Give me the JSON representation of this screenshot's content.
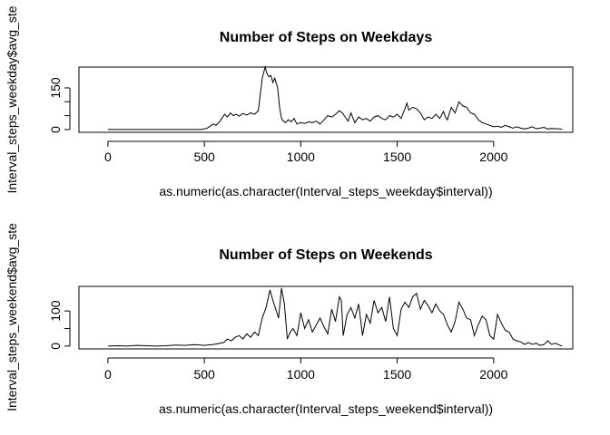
{
  "chart_data": [
    {
      "type": "line",
      "title": "Number of Steps on Weekdays",
      "xlabel": "as.numeric(as.character(Interval_steps_weekday$interval))",
      "ylabel": "Interval_steps_weekday$avg_ste",
      "xlim": [
        -150,
        2410
      ],
      "ylim": [
        -10,
        225
      ],
      "x_ticks": [
        0,
        500,
        1000,
        1500,
        2000
      ],
      "y_ticks": [
        0,
        50,
        100,
        150
      ],
      "y_tick_labels": [
        "0",
        "",
        "",
        "150"
      ],
      "series": [
        {
          "x": [
            0,
            100,
            200,
            300,
            400,
            480,
            500,
            515,
            530,
            545,
            560,
            575,
            590,
            605,
            620,
            635,
            650,
            665,
            680,
            700,
            720,
            740,
            760,
            780,
            800,
            815,
            825,
            835,
            845,
            855,
            865,
            880,
            890,
            900,
            910,
            920,
            935,
            950,
            965,
            980,
            1000,
            1020,
            1040,
            1060,
            1080,
            1100,
            1120,
            1140,
            1160,
            1180,
            1200,
            1215,
            1230,
            1245,
            1260,
            1280,
            1300,
            1320,
            1340,
            1360,
            1380,
            1400,
            1420,
            1440,
            1460,
            1480,
            1500,
            1520,
            1540,
            1550,
            1560,
            1580,
            1600,
            1620,
            1640,
            1660,
            1680,
            1700,
            1720,
            1740,
            1750,
            1760,
            1780,
            1800,
            1820,
            1840,
            1860,
            1880,
            1900,
            1920,
            1940,
            1960,
            1980,
            2000,
            2020,
            2040,
            2060,
            2080,
            2100,
            2120,
            2140,
            2160,
            2180,
            2200,
            2220,
            2240,
            2260,
            2280,
            2300,
            2320,
            2340,
            2355
          ],
          "values": [
            0,
            0,
            0,
            0,
            0,
            0,
            2,
            5,
            12,
            20,
            15,
            25,
            40,
            55,
            45,
            60,
            50,
            55,
            48,
            58,
            52,
            60,
            55,
            68,
            185,
            225,
            200,
            190,
            195,
            170,
            185,
            150,
            80,
            40,
            30,
            25,
            35,
            28,
            40,
            20,
            25,
            22,
            28,
            25,
            30,
            20,
            35,
            50,
            45,
            55,
            68,
            60,
            45,
            30,
            60,
            25,
            45,
            35,
            40,
            30,
            45,
            50,
            40,
            35,
            50,
            45,
            55,
            40,
            75,
            95,
            70,
            80,
            75,
            60,
            35,
            45,
            40,
            55,
            40,
            65,
            45,
            35,
            80,
            60,
            100,
            85,
            80,
            60,
            55,
            35,
            25,
            20,
            15,
            10,
            12,
            8,
            15,
            10,
            5,
            10,
            5,
            2,
            5,
            10,
            3,
            5,
            8,
            2,
            4,
            3,
            2,
            1
          ]
        }
      ]
    },
    {
      "type": "line",
      "title": "Number of Steps on Weekends",
      "xlabel": "as.numeric(as.character(Interval_steps_weekend$interval))",
      "ylabel": "Interval_steps_weekend$avg_ste",
      "xlim": [
        -150,
        2410
      ],
      "ylim": [
        -8,
        170
      ],
      "x_ticks": [
        0,
        500,
        1000,
        1500,
        2000
      ],
      "y_ticks": [
        0,
        50,
        100
      ],
      "y_tick_labels": [
        "0",
        "",
        "100"
      ],
      "series": [
        {
          "x": [
            0,
            50,
            100,
            150,
            200,
            250,
            300,
            350,
            400,
            450,
            500,
            550,
            600,
            620,
            640,
            660,
            680,
            700,
            720,
            740,
            760,
            780,
            800,
            820,
            840,
            855,
            870,
            885,
            900,
            915,
            930,
            945,
            960,
            980,
            1000,
            1020,
            1040,
            1060,
            1080,
            1100,
            1120,
            1140,
            1160,
            1180,
            1200,
            1210,
            1220,
            1240,
            1260,
            1280,
            1300,
            1320,
            1340,
            1360,
            1380,
            1400,
            1420,
            1440,
            1460,
            1480,
            1500,
            1520,
            1540,
            1560,
            1580,
            1600,
            1620,
            1640,
            1660,
            1680,
            1700,
            1720,
            1740,
            1760,
            1780,
            1800,
            1820,
            1840,
            1860,
            1880,
            1900,
            1920,
            1940,
            1960,
            1980,
            2000,
            2020,
            2040,
            2060,
            2080,
            2100,
            2120,
            2140,
            2160,
            2180,
            2200,
            2220,
            2240,
            2260,
            2280,
            2300,
            2320,
            2340,
            2355
          ],
          "values": [
            0,
            1,
            0,
            2,
            1,
            0,
            1,
            3,
            2,
            4,
            2,
            5,
            10,
            20,
            15,
            25,
            30,
            20,
            35,
            25,
            40,
            30,
            80,
            110,
            160,
            130,
            105,
            80,
            165,
            120,
            20,
            40,
            50,
            30,
            95,
            50,
            75,
            40,
            60,
            80,
            55,
            35,
            105,
            70,
            140,
            130,
            30,
            90,
            110,
            80,
            120,
            30,
            90,
            65,
            130,
            95,
            110,
            70,
            140,
            50,
            30,
            105,
            125,
            110,
            140,
            150,
            105,
            130,
            115,
            95,
            120,
            100,
            90,
            60,
            40,
            70,
            125,
            105,
            80,
            75,
            30,
            60,
            85,
            75,
            30,
            20,
            90,
            65,
            45,
            40,
            20,
            15,
            12,
            5,
            10,
            5,
            8,
            2,
            4,
            15,
            5,
            8,
            3,
            0
          ]
        }
      ]
    }
  ]
}
